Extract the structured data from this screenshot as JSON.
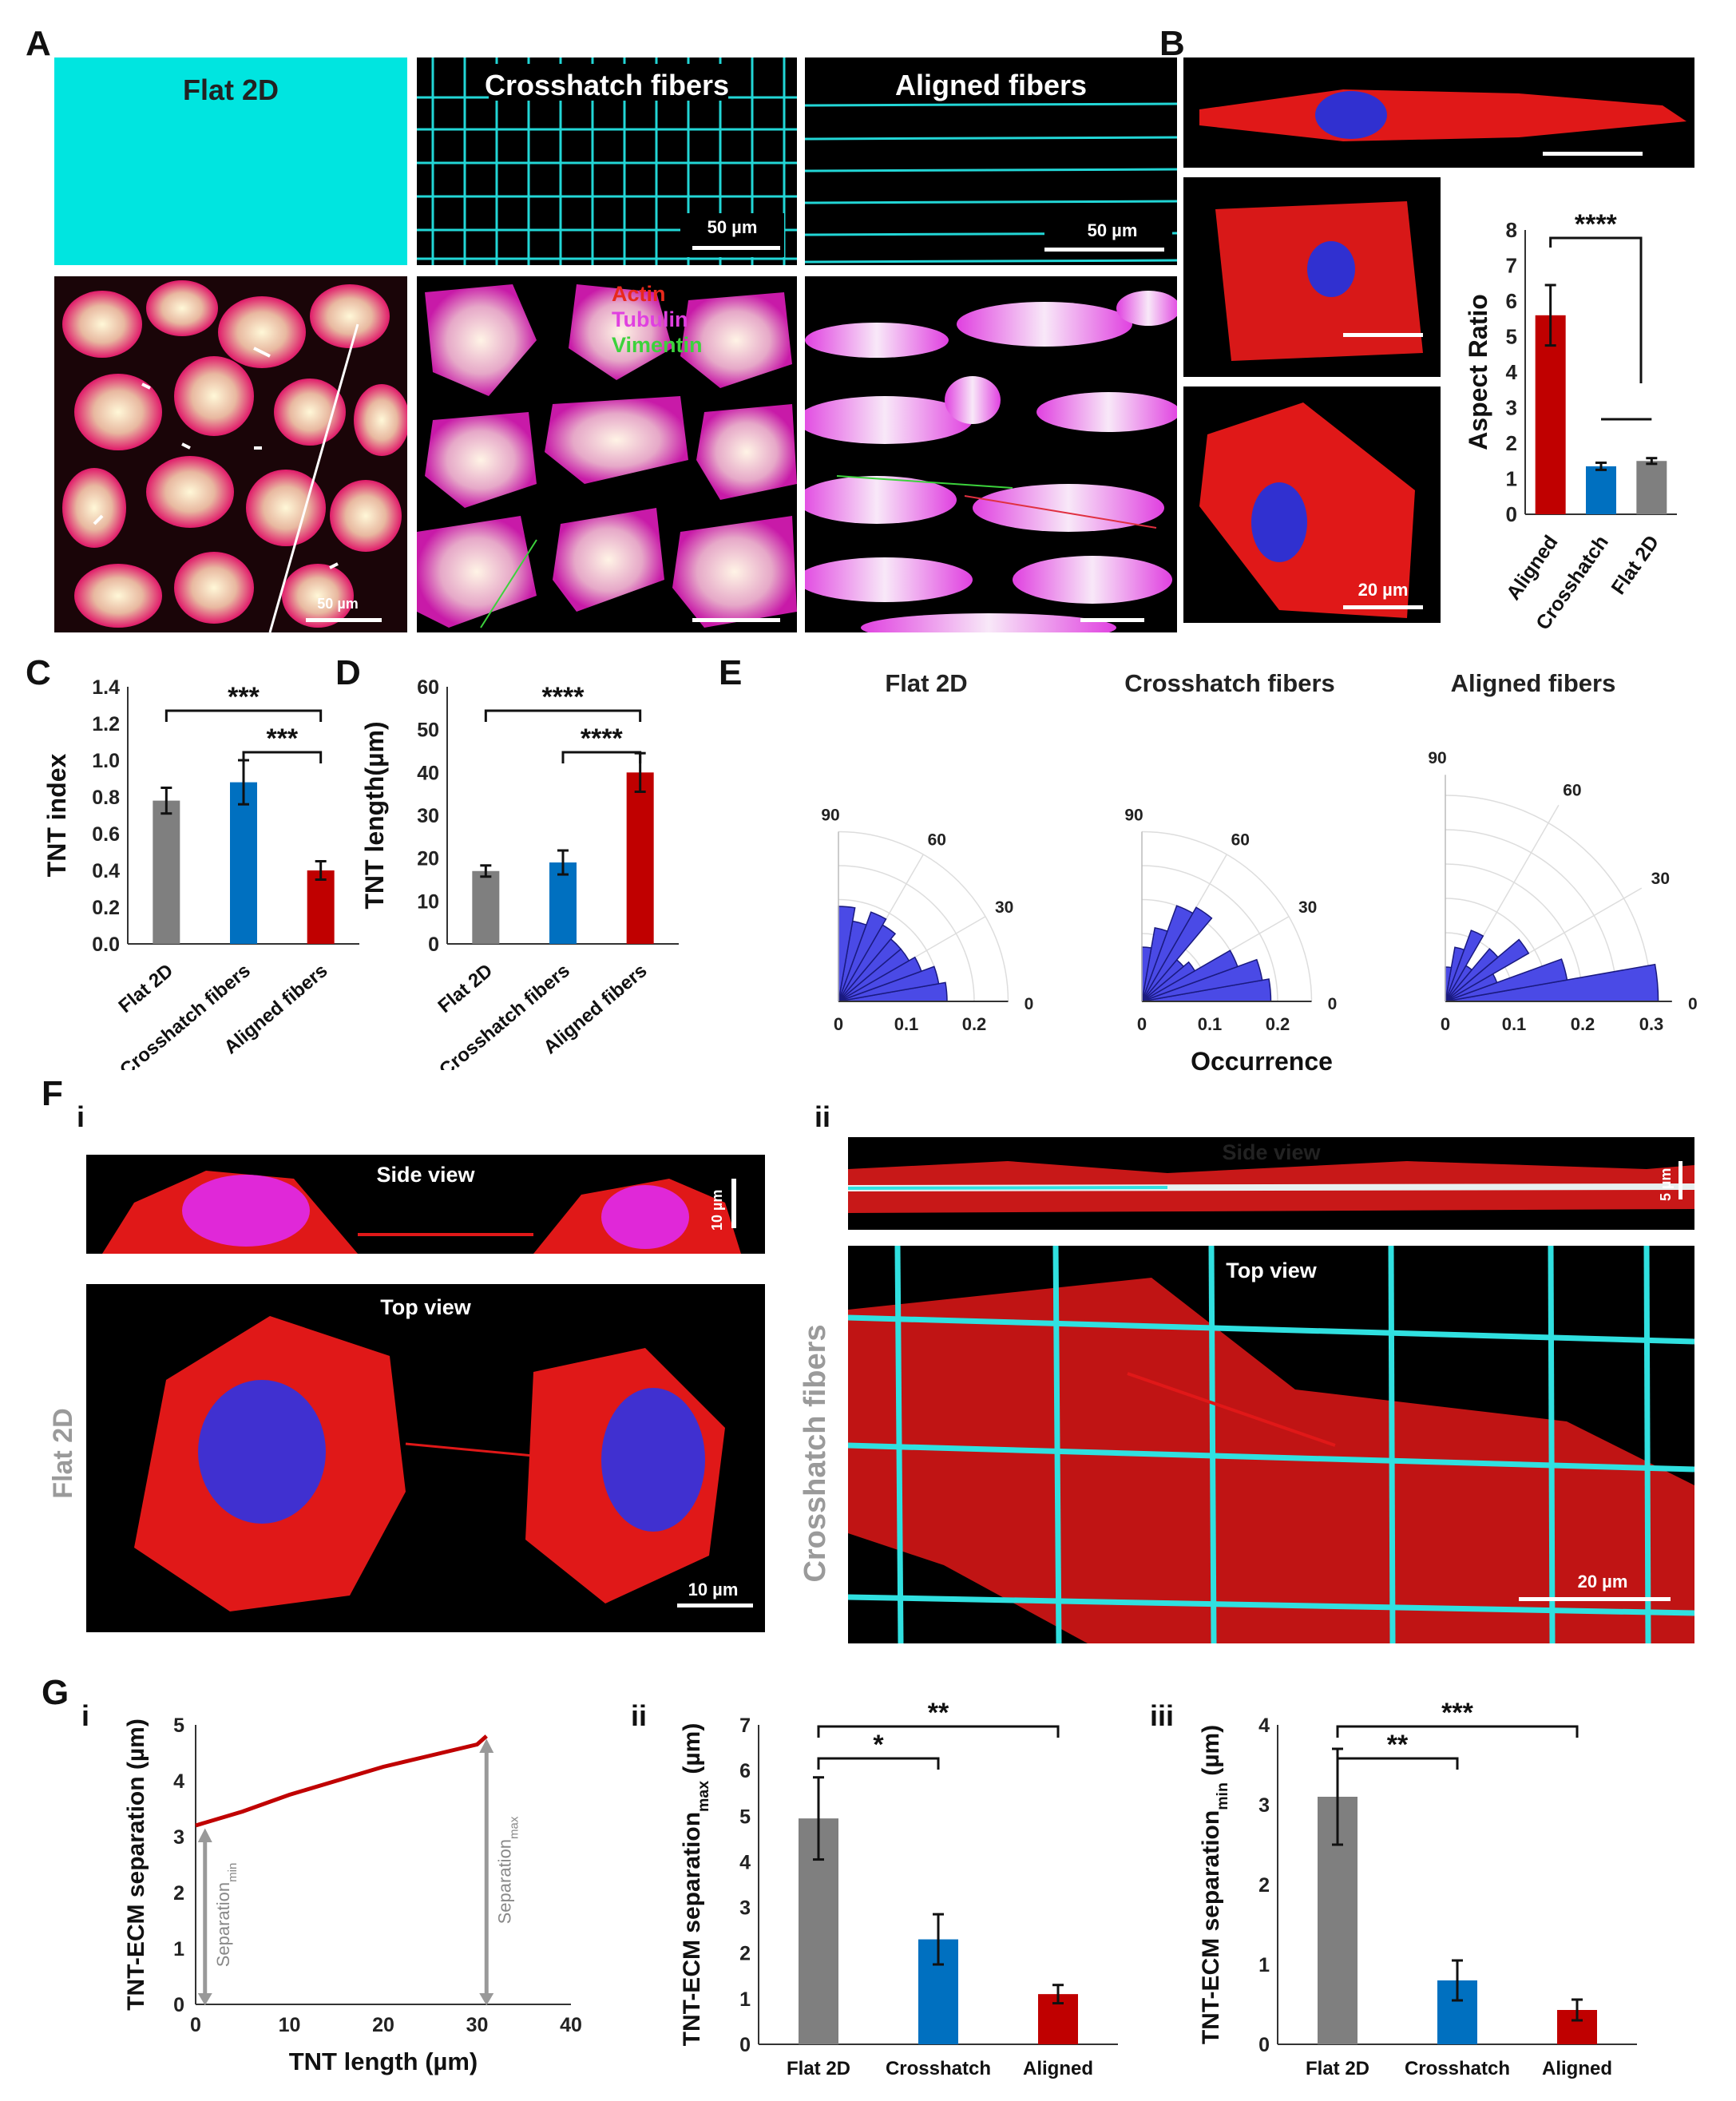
{
  "panel_labels": {
    "A": "A",
    "B": "B",
    "C": "C",
    "D": "D",
    "E": "E",
    "F": "F",
    "G": "G"
  },
  "panel_A": {
    "titles": [
      "Flat 2D",
      "Crosshatch fibers",
      "Aligned fibers"
    ],
    "scale_labels": [
      "50 µm",
      "50 µm",
      "50 µm"
    ],
    "stain_legend": [
      {
        "text": "Actin",
        "color": "#e8291c"
      },
      {
        "text": "Tubulin",
        "color": "#e040e0"
      },
      {
        "text": "Vimentin",
        "color": "#3cd23c"
      }
    ]
  },
  "panel_B": {
    "scale_label": "20 µm"
  },
  "panel_F": {
    "sub_i": "i",
    "sub_ii": "ii",
    "side_view": "Side view",
    "top_view": "Top view",
    "side_view_ii": "Side view",
    "top_view_ii": "Top view",
    "flat_label": "Flat 2D",
    "cross_label": "Crosshatch fibers",
    "scale_i_side": "10 µm",
    "scale_i_top": "10 µm",
    "scale_ii_side": "5 µm",
    "scale_ii_top": "20 µm"
  },
  "panel_G": {
    "sub_i": "i",
    "sub_ii": "ii",
    "sub_iii": "iii"
  },
  "colors": {
    "aligned": "#c00000",
    "crosshatch": "#0070c0",
    "flat": "#7f7f7f",
    "polar": "#4a4ae6",
    "fiber": "#00e0e0"
  },
  "chart_data": [
    {
      "id": "B",
      "type": "bar",
      "categories": [
        "Aligned",
        "Crosshatch",
        "Flat 2D"
      ],
      "values": [
        5.6,
        1.35,
        1.5
      ],
      "errors": [
        0.85,
        0.1,
        0.08
      ],
      "ylabel": "Aspect Ratio",
      "ylim": [
        0,
        8
      ],
      "yticks": [
        "0",
        "1",
        "2",
        "3",
        "4",
        "5",
        "6",
        "7",
        "8"
      ],
      "sig": [
        "****"
      ]
    },
    {
      "id": "C",
      "type": "bar",
      "categories": [
        "Flat 2D",
        "Crosshatch fibers",
        "Aligned fibers"
      ],
      "values": [
        0.78,
        0.88,
        0.4
      ],
      "errors": [
        0.07,
        0.12,
        0.05
      ],
      "ylabel": "TNT index",
      "ylim": [
        0,
        1.4
      ],
      "yticks": [
        "0.0",
        "0.2",
        "0.4",
        "0.6",
        "0.8",
        "1.0",
        "1.2",
        "1.4"
      ],
      "sig": [
        "***",
        "***"
      ]
    },
    {
      "id": "D",
      "type": "bar",
      "categories": [
        "Flat 2D",
        "Crosshatch fibers",
        "Aligned fibers"
      ],
      "values": [
        17,
        19,
        40
      ],
      "errors": [
        1.3,
        2.8,
        4.5
      ],
      "ylabel": "TNT length(µm)",
      "ylim": [
        0,
        60
      ],
      "yticks": [
        "0",
        "10",
        "20",
        "30",
        "40",
        "50",
        "60"
      ],
      "sig": [
        "****",
        "****"
      ]
    },
    {
      "id": "E",
      "type": "polar",
      "titles": [
        "Flat 2D",
        "Crosshatch fibers",
        "Aligned fibers"
      ],
      "xlabel": "Occurrence",
      "angle_ticks": [
        "90",
        "60",
        "30",
        "0"
      ],
      "radial_ticks": [
        "0",
        "0.1",
        "0.2"
      ],
      "radial_ticks_3": [
        "0",
        "0.1",
        "0.2",
        "0.3"
      ],
      "bins_deg": [
        0,
        10,
        20,
        30,
        40,
        50,
        60,
        70,
        80,
        90
      ],
      "flat": [
        0.16,
        0.15,
        0.13,
        0.12,
        0.12,
        0.13,
        0.14,
        0.12,
        0.14
      ],
      "crosshatch": [
        0.19,
        0.18,
        0.15,
        0.09,
        0.08,
        0.16,
        0.15,
        0.11,
        0.08
      ],
      "aligned": [
        0.31,
        0.18,
        0.08,
        0.14,
        0.1,
        0.06,
        0.11,
        0.08,
        0.05
      ]
    },
    {
      "id": "Gi",
      "type": "line",
      "x": [
        0,
        5,
        10,
        15,
        20,
        25,
        30,
        31
      ],
      "y": [
        3.2,
        3.45,
        3.75,
        4.0,
        4.25,
        4.45,
        4.65,
        4.8
      ],
      "xlabel": "TNT length (µm)",
      "ylabel": "TNT-ECM separation (µm)",
      "xlim": [
        0,
        40
      ],
      "ylim": [
        0,
        5
      ],
      "xticks": [
        "0",
        "10",
        "20",
        "30",
        "40"
      ],
      "yticks": [
        "0",
        "1",
        "2",
        "3",
        "4",
        "5"
      ],
      "annot_min": "Separation",
      "annot_min_sub": "min",
      "annot_max": "Separation",
      "annot_max_sub": "max"
    },
    {
      "id": "Gii",
      "type": "bar",
      "categories": [
        "Flat 2D",
        "Crosshatch",
        "Aligned"
      ],
      "values": [
        4.95,
        2.3,
        1.1
      ],
      "errors": [
        0.9,
        0.55,
        0.2
      ],
      "ylabel": "TNT-ECM separation",
      "ylabel_sub": "max",
      "ylabel_unit": " (µm)",
      "ylim": [
        0,
        7
      ],
      "yticks": [
        "0",
        "1",
        "2",
        "3",
        "4",
        "5",
        "6",
        "7"
      ],
      "sig": [
        "*",
        "**"
      ]
    },
    {
      "id": "Giii",
      "type": "bar",
      "categories": [
        "Flat 2D",
        "Crosshatch",
        "Aligned"
      ],
      "values": [
        3.1,
        0.8,
        0.43
      ],
      "errors": [
        0.6,
        0.25,
        0.13
      ],
      "ylabel": "TNT-ECM separation",
      "ylabel_sub": "min",
      "ylabel_unit": " (µm)",
      "ylim": [
        0,
        4
      ],
      "yticks": [
        "0",
        "1",
        "2",
        "3",
        "4"
      ],
      "sig": [
        "**",
        "***"
      ]
    }
  ]
}
